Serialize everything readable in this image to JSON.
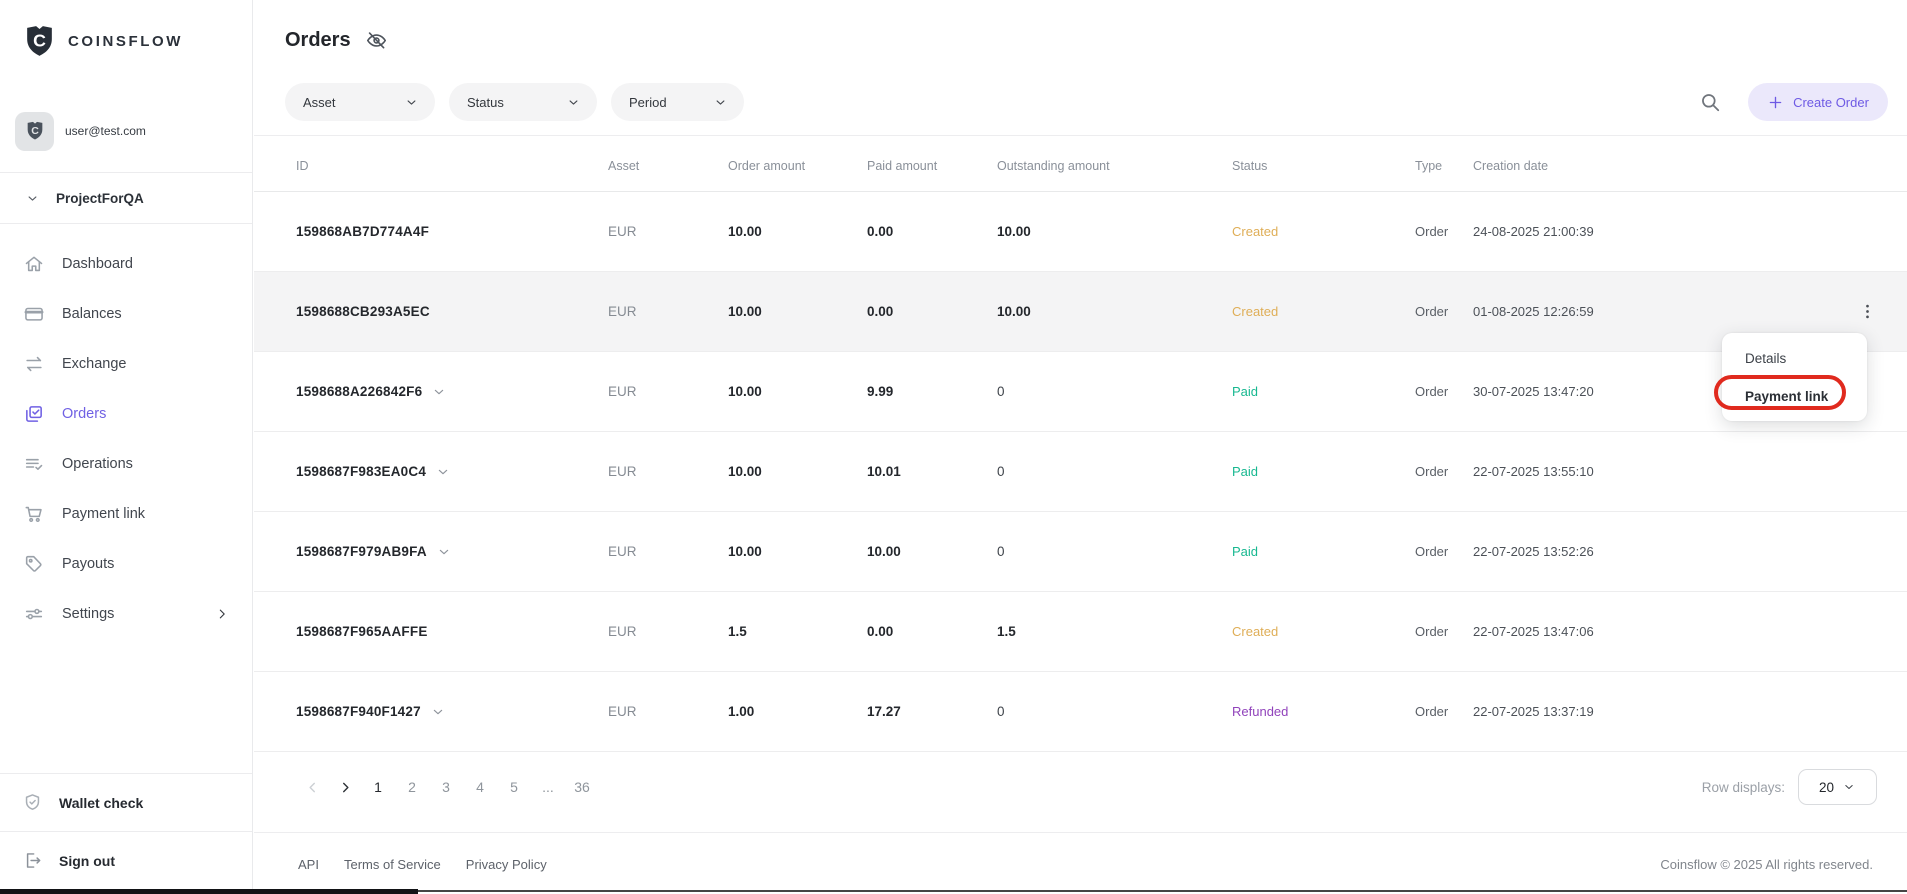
{
  "brand": {
    "wordmark": "COINSFLOW",
    "logo_icon": "shield-logo"
  },
  "sidebar": {
    "email": "user@test.com",
    "project": "ProjectForQA",
    "items": [
      {
        "label": "Dashboard",
        "icon": "home",
        "active": false
      },
      {
        "label": "Balances",
        "icon": "balances",
        "active": false
      },
      {
        "label": "Exchange",
        "icon": "exchange",
        "active": false
      },
      {
        "label": "Orders",
        "icon": "orders",
        "active": true
      },
      {
        "label": "Operations",
        "icon": "operations",
        "active": false
      },
      {
        "label": "Payment link",
        "icon": "cart",
        "active": false
      },
      {
        "label": "Payouts",
        "icon": "tag",
        "active": false
      },
      {
        "label": "Settings",
        "icon": "settings",
        "active": false,
        "chevron": true
      }
    ],
    "wallet_check": "Wallet check",
    "sign_out": "Sign out"
  },
  "header": {
    "title": "Orders",
    "title_icon": "eye-off",
    "filters": [
      {
        "label": "Asset"
      },
      {
        "label": "Status"
      },
      {
        "label": "Period"
      }
    ],
    "create_order": "Create Order"
  },
  "table": {
    "columns": [
      "ID",
      "Asset",
      "Order amount",
      "Paid amount",
      "Outstanding amount",
      "Status",
      "Type",
      "Creation date"
    ],
    "rows": [
      {
        "id": "159868AB7D774A4F",
        "expandable": false,
        "asset": "EUR",
        "order_amount": "10.00",
        "paid_amount": "0.00",
        "outstanding": "10.00",
        "status": "Created",
        "type": "Order",
        "created": "24-08-2025 21:00:39",
        "highlighted": false,
        "kebab": false
      },
      {
        "id": "1598688CB293A5EC",
        "expandable": false,
        "asset": "EUR",
        "order_amount": "10.00",
        "paid_amount": "0.00",
        "outstanding": "10.00",
        "status": "Created",
        "type": "Order",
        "created": "01-08-2025 12:26:59",
        "highlighted": true,
        "kebab": true
      },
      {
        "id": "1598688A226842F6",
        "expandable": true,
        "asset": "EUR",
        "order_amount": "10.00",
        "paid_amount": "9.99",
        "outstanding": "0",
        "status": "Paid",
        "type": "Order",
        "created": "30-07-2025 13:47:20",
        "highlighted": false,
        "kebab": false
      },
      {
        "id": "1598687F983EA0C4",
        "expandable": true,
        "asset": "EUR",
        "order_amount": "10.00",
        "paid_amount": "10.01",
        "outstanding": "0",
        "status": "Paid",
        "type": "Order",
        "created": "22-07-2025 13:55:10",
        "highlighted": false,
        "kebab": false
      },
      {
        "id": "1598687F979AB9FA",
        "expandable": true,
        "asset": "EUR",
        "order_amount": "10.00",
        "paid_amount": "10.00",
        "outstanding": "0",
        "status": "Paid",
        "type": "Order",
        "created": "22-07-2025 13:52:26",
        "highlighted": false,
        "kebab": false
      },
      {
        "id": "1598687F965AAFFE",
        "expandable": false,
        "asset": "EUR",
        "order_amount": "1.5",
        "paid_amount": "0.00",
        "outstanding": "1.5",
        "status": "Created",
        "type": "Order",
        "created": "22-07-2025 13:47:06",
        "highlighted": false,
        "kebab": false
      },
      {
        "id": "1598687F940F1427",
        "expandable": true,
        "asset": "EUR",
        "order_amount": "1.00",
        "paid_amount": "17.27",
        "outstanding": "0",
        "status": "Refunded",
        "type": "Order",
        "created": "22-07-2025 13:37:19",
        "highlighted": false,
        "kebab": false
      }
    ]
  },
  "status_colors": {
    "Created": "#dfae57",
    "Paid": "#17b890",
    "Refunded": "#9143bb"
  },
  "context_menu": {
    "items": [
      {
        "label": "Details",
        "bold": false,
        "annotated": false
      },
      {
        "label": "Payment link",
        "bold": true,
        "annotated": true
      }
    ]
  },
  "annotation_color": "#e02a1e",
  "pagination": {
    "pages": [
      "1",
      "2",
      "3",
      "4",
      "5",
      "...",
      "36"
    ],
    "active": "1",
    "row_displays_label": "Row displays:",
    "page_size": "20"
  },
  "footer": {
    "links": [
      "API",
      "Terms of Service",
      "Privacy Policy"
    ],
    "copyright": "Coinsflow © 2025 All rights reserved."
  },
  "accent_colors": {
    "primary": "#7061e4",
    "button_bg": "#ebe8fb",
    "row_highlight": "#f4f4f5"
  }
}
